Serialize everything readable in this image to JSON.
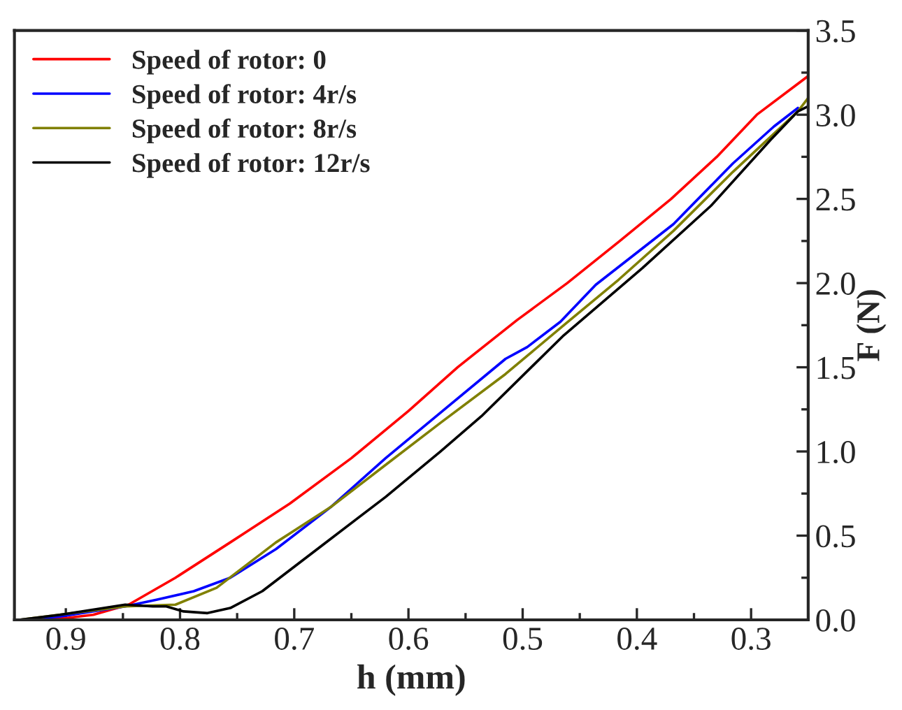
{
  "chart_data": {
    "type": "line",
    "xlabel": "h (mm)",
    "ylabel": "F (N)",
    "xlim": [
      0.945,
      0.25
    ],
    "xticks": [
      0.9,
      0.8,
      0.7,
      0.6,
      0.5,
      0.4,
      0.3
    ],
    "ylim": [
      0,
      3.5
    ],
    "yticks": [
      {
        "value": 0,
        "label": "0.0"
      },
      0.5,
      {
        "value": 1,
        "label": "1.0"
      },
      1.5,
      {
        "value": 2,
        "label": "2.0"
      },
      2.5,
      {
        "value": 3,
        "label": "3.0"
      },
      3.5
    ],
    "legend": "top left",
    "grid": false,
    "marker": "none",
    "line_style": "solid",
    "series": [
      {
        "name": "Speed of rotor: 0",
        "color": "#ff0000",
        "x": [
          0.941,
          0.9,
          0.876,
          0.845,
          0.804,
          0.756,
          0.704,
          0.65,
          0.6,
          0.557,
          0.505,
          0.461,
          0.415,
          0.37,
          0.33,
          0.295,
          0.25
        ],
        "values": [
          0,
          0.01,
          0.03,
          0.09,
          0.25,
          0.46,
          0.69,
          0.96,
          1.24,
          1.5,
          1.78,
          2.0,
          2.25,
          2.5,
          2.75,
          3.0,
          3.23
        ]
      },
      {
        "name": "Speed of rotor: 4r/s",
        "color": "#0000ff",
        "x": [
          0.941,
          0.905,
          0.848,
          0.82,
          0.788,
          0.756,
          0.716,
          0.668,
          0.62,
          0.572,
          0.515,
          0.496,
          0.467,
          0.436,
          0.368,
          0.316,
          0.28,
          0.259
        ],
        "values": [
          0,
          0.02,
          0.08,
          0.12,
          0.17,
          0.25,
          0.42,
          0.67,
          0.96,
          1.23,
          1.55,
          1.62,
          1.77,
          1.99,
          2.35,
          2.71,
          2.93,
          3.04
        ]
      },
      {
        "name": "Speed of rotor: 8r/s",
        "color": "#808000",
        "x": [
          0.941,
          0.848,
          0.804,
          0.768,
          0.716,
          0.668,
          0.62,
          0.572,
          0.515,
          0.464,
          0.416,
          0.368,
          0.316,
          0.259,
          0.25
        ],
        "values": [
          0,
          0.08,
          0.09,
          0.19,
          0.46,
          0.67,
          0.92,
          1.17,
          1.46,
          1.75,
          2.02,
          2.31,
          2.66,
          3.02,
          3.1
        ]
      },
      {
        "name": "Speed of rotor: 12r/s",
        "color": "#000000",
        "x": [
          0.941,
          0.905,
          0.848,
          0.824,
          0.812,
          0.797,
          0.776,
          0.756,
          0.728,
          0.676,
          0.62,
          0.572,
          0.536,
          0.464,
          0.395,
          0.335,
          0.283,
          0.259,
          0.25
        ],
        "values": [
          0,
          0.03,
          0.09,
          0.08,
          0.08,
          0.05,
          0.04,
          0.07,
          0.17,
          0.44,
          0.73,
          1.0,
          1.21,
          1.69,
          2.09,
          2.46,
          2.85,
          3.02,
          3.05
        ]
      }
    ]
  }
}
